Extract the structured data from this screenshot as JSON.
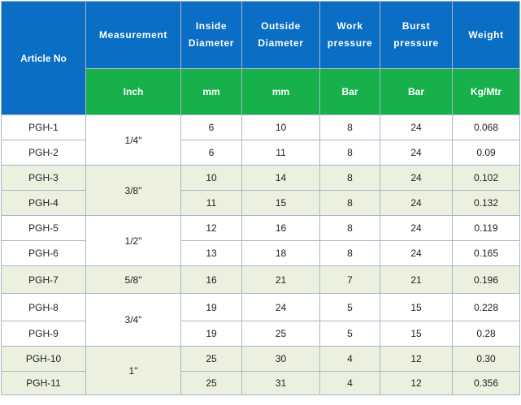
{
  "header": {
    "article_no": "Article No",
    "measurement": "Measurement",
    "inside_diameter": [
      "Inside",
      "Diameter"
    ],
    "outside_diameter": [
      "Outside",
      "Diameter"
    ],
    "work_pressure": [
      "Work",
      "pressure"
    ],
    "burst_pressure": [
      "Burst",
      "pressure"
    ],
    "weight": "Weight"
  },
  "units": {
    "measurement": "Inch",
    "inside_diameter": "mm",
    "outside_diameter": "mm",
    "work_pressure": "Bar",
    "burst_pressure": "Bar",
    "weight": "Kg/Mtr"
  },
  "rows": [
    {
      "article": "PGH-1",
      "measurement": "1/4\"",
      "id": "6",
      "od": "10",
      "work": "8",
      "burst": "24",
      "weight": "0.068"
    },
    {
      "article": "PGH-2",
      "measurement": "1/4\"",
      "id": "6",
      "od": "11",
      "work": "8",
      "burst": "24",
      "weight": "0.09"
    },
    {
      "article": "PGH-3",
      "measurement": "3/8\"",
      "id": "10",
      "od": "14",
      "work": "8",
      "burst": "24",
      "weight": "0.102"
    },
    {
      "article": "PGH-4",
      "measurement": "3/8\"",
      "id": "11",
      "od": "15",
      "work": "8",
      "burst": "24",
      "weight": "0.132"
    },
    {
      "article": "PGH-5",
      "measurement": "1/2\"",
      "id": "12",
      "od": "16",
      "work": "8",
      "burst": "24",
      "weight": "0.119"
    },
    {
      "article": "PGH-6",
      "measurement": "1/2\"",
      "id": "13",
      "od": "18",
      "work": "8",
      "burst": "24",
      "weight": "0.165"
    },
    {
      "article": "PGH-7",
      "measurement": "5/8\"",
      "id": "16",
      "od": "21",
      "work": "7",
      "burst": "21",
      "weight": "0.196"
    },
    {
      "article": "PGH-8",
      "measurement": "3/4\"",
      "id": "19",
      "od": "24",
      "work": "5",
      "burst": "15",
      "weight": "0.228"
    },
    {
      "article": "PGH-9",
      "measurement": "3/4\"",
      "id": "19",
      "od": "25",
      "work": "5",
      "burst": "15",
      "weight": "0.28"
    },
    {
      "article": "PGH-10",
      "measurement": "1\"",
      "id": "25",
      "od": "30",
      "work": "4",
      "burst": "12",
      "weight": "0.30"
    },
    {
      "article": "PGH-11",
      "measurement": "1\"",
      "id": "25",
      "od": "31",
      "work": "4",
      "burst": "12",
      "weight": "0.356"
    }
  ],
  "colors": {
    "header_blue": "#0a6ec4",
    "header_green": "#16b14a",
    "band_shade": "#ebf1de",
    "grid": "#a9b7c8"
  }
}
